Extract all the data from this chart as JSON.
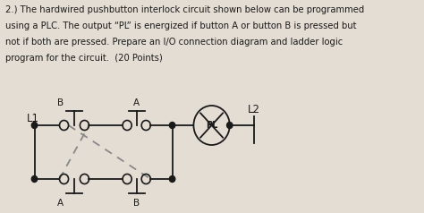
{
  "title_line1": "2.) The hardwired pushbutton interlock circuit shown below can be programmed",
  "title_line2": "using a PLC. The output “PL” is energized if button A or button B is pressed but",
  "title_line3": "not if both are pressed. Prepare an I/O connection diagram and ladder logic",
  "title_line4": "program for the circuit.  (20 Points)",
  "bg_color": "#e4ddd4",
  "line_color": "#1a1a1a",
  "dashed_color": "#888888",
  "L1_label": "L1",
  "L2_label": "L2",
  "PL_label": "PL",
  "label_A_top": "A",
  "label_B_top": "B",
  "label_A_bot": "A",
  "label_B_bot": "B",
  "title_fontsize": 7.2,
  "label_fontsize": 7.5
}
